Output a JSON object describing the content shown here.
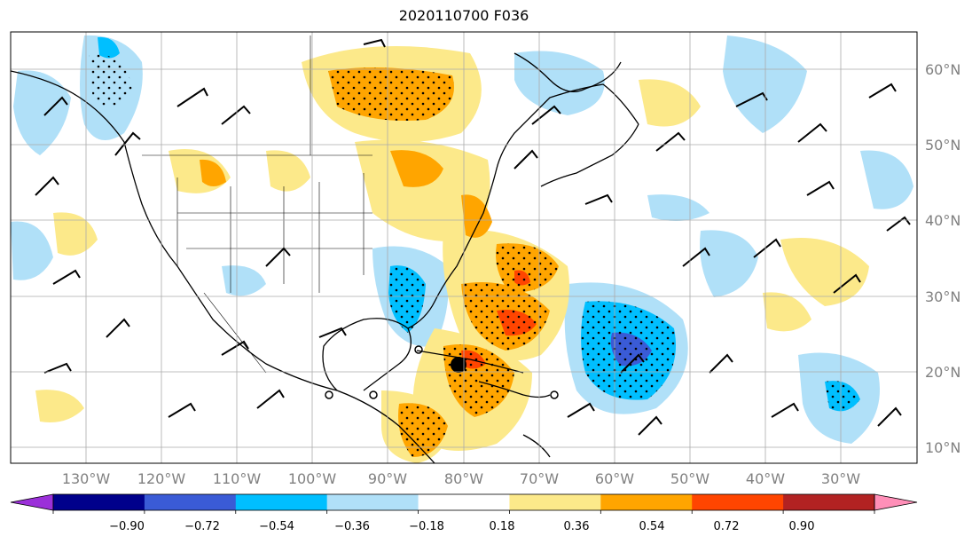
{
  "title": "2020110700 F036",
  "map": {
    "lat_labels": [
      "60°N",
      "50°N",
      "40°N",
      "30°N",
      "20°N",
      "10°N"
    ],
    "lon_labels": [
      "130°W",
      "120°W",
      "110°W",
      "100°W",
      "90°W",
      "80°W",
      "70°W",
      "60°W",
      "50°W",
      "40°W",
      "30°W"
    ],
    "storm_marker": "filled-circle"
  },
  "colorbar": {
    "tick_labels": [
      "−0.90",
      "−0.72",
      "−0.54",
      "−0.36",
      "−0.18",
      "0.18",
      "0.36",
      "0.54",
      "0.72",
      "0.90"
    ],
    "colors": [
      "#9b30d9",
      "#00008b",
      "#3a5bd6",
      "#00bfff",
      "#b0e0f8",
      "#ffffff",
      "#fce98a",
      "#ffa500",
      "#ff4500",
      "#b22222",
      "#ff8fb8"
    ]
  }
}
